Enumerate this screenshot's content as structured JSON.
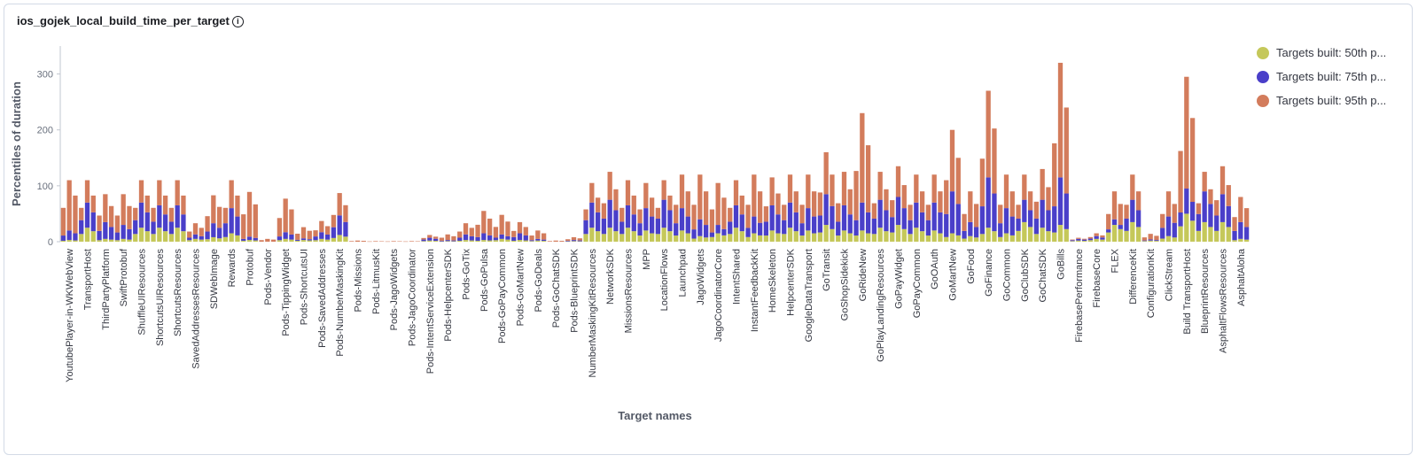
{
  "panel": {
    "title": "ios_gojek_local_build_time_per_target",
    "info_icon": "info-icon"
  },
  "colors": {
    "p50": "#c5c85a",
    "p75": "#4a3fc9",
    "p95": "#d37c5c"
  },
  "chart_data": {
    "type": "bar",
    "stacked": true,
    "xlabel": "Target names",
    "ylabel": "Percentiles of duration",
    "ylim": [
      0,
      350
    ],
    "yticks": [
      0,
      100,
      200,
      300
    ],
    "grid": false,
    "legend_position": "right",
    "categories": [
      "YoutubePlayer-in-WKWebView",
      "TransportHost",
      "ThirdPartyPlatform",
      "SwiftProtobuf",
      "ShuffleUIResources",
      "ShortcutsUIResources",
      "ShortcutsResources",
      "SavedAddressesResources",
      "SDWebImage",
      "Rewards",
      "Protobuf",
      "Pods-Vendor",
      "Pods-TippingWidget",
      "Pods-ShortcutsUI",
      "Pods-SavedAddresses",
      "Pods-NumberMaskingKit",
      "Pods-Missions",
      "Pods-LitmusKit",
      "Pods-JagoWidgets",
      "Pods-JagoCoordinator",
      "Pods-IntentServiceExtension",
      "Pods-HelpcenterSDK",
      "Pods-GoTix",
      "Pods-GoPulsa",
      "Pods-GoPayCommon",
      "Pods-GoMartNew",
      "Pods-GoDeals",
      "Pods-GoChatSDK",
      "Pods-BlueprintSDK",
      "NumberMaskingKitResources",
      "NetworkSDK",
      "MissionsResources",
      "MPP",
      "LocationFlows",
      "Launchpad",
      "JagoWidgets",
      "JagoCoordinatorCore",
      "IntentShared",
      "InstantFeedbackKit",
      "HomeSkeleton",
      "HelpcenterSDK",
      "GoogleDataTransport",
      "GoTransit",
      "GoShopSidekick",
      "GoRideNew",
      "GoPlayLandingResources",
      "GoPayWidget",
      "GoPayCommon",
      "GoOAuth",
      "GoMartNew",
      "GoFood",
      "GoFinance",
      "GoCommon",
      "GoClubSDK",
      "GoChatSDK",
      "GoBills",
      "FirebasePerformance",
      "FirebaseCore",
      "FLEX",
      "DifferenceKit",
      "ConfigurationKit",
      "ClickStream",
      "Build TransportHost",
      "BlueprintResources",
      "AsphaltFlowsResources",
      "AsphaltAloha"
    ],
    "series": [
      {
        "name": "Targets built: 50th p...",
        "values": [
          3,
          25,
          5,
          5,
          25,
          25,
          25,
          5,
          8,
          15,
          3,
          0,
          5,
          3,
          5,
          12,
          0,
          0,
          0,
          0,
          2,
          1,
          3,
          3,
          5,
          3,
          2,
          0,
          1,
          25,
          25,
          25,
          20,
          25,
          20,
          10,
          15,
          25,
          15,
          20,
          25,
          20,
          30,
          20,
          20,
          25,
          30,
          25,
          20,
          15,
          10,
          25,
          15,
          35,
          25,
          30,
          2,
          5,
          30,
          35,
          2,
          10,
          50,
          35,
          35,
          5
        ]
      },
      {
        "name": "Targets built: 75th p...",
        "values": [
          17,
          45,
          30,
          25,
          45,
          40,
          40,
          8,
          25,
          45,
          6,
          0,
          12,
          3,
          12,
          35,
          0,
          0,
          0,
          0,
          5,
          2,
          10,
          12,
          8,
          12,
          3,
          0,
          2,
          45,
          50,
          40,
          40,
          50,
          40,
          30,
          15,
          40,
          30,
          45,
          45,
          40,
          55,
          45,
          50,
          50,
          50,
          45,
          50,
          75,
          25,
          90,
          45,
          40,
          50,
          85,
          3,
          5,
          10,
          40,
          2,
          35,
          45,
          55,
          50,
          30
        ]
      },
      {
        "name": "Targets built: 95th p...",
        "values": [
          90,
          40,
          50,
          55,
          40,
          45,
          45,
          20,
          50,
          50,
          80,
          5,
          60,
          20,
          20,
          40,
          2,
          1,
          1,
          1,
          5,
          10,
          20,
          40,
          35,
          20,
          15,
          2,
          5,
          35,
          50,
          45,
          45,
          35,
          60,
          80,
          75,
          45,
          75,
          50,
          50,
          60,
          75,
          60,
          160,
          50,
          55,
          50,
          50,
          110,
          55,
          155,
          60,
          45,
          55,
          205,
          2,
          5,
          50,
          45,
          10,
          45,
          200,
          35,
          50,
          45
        ]
      }
    ]
  }
}
